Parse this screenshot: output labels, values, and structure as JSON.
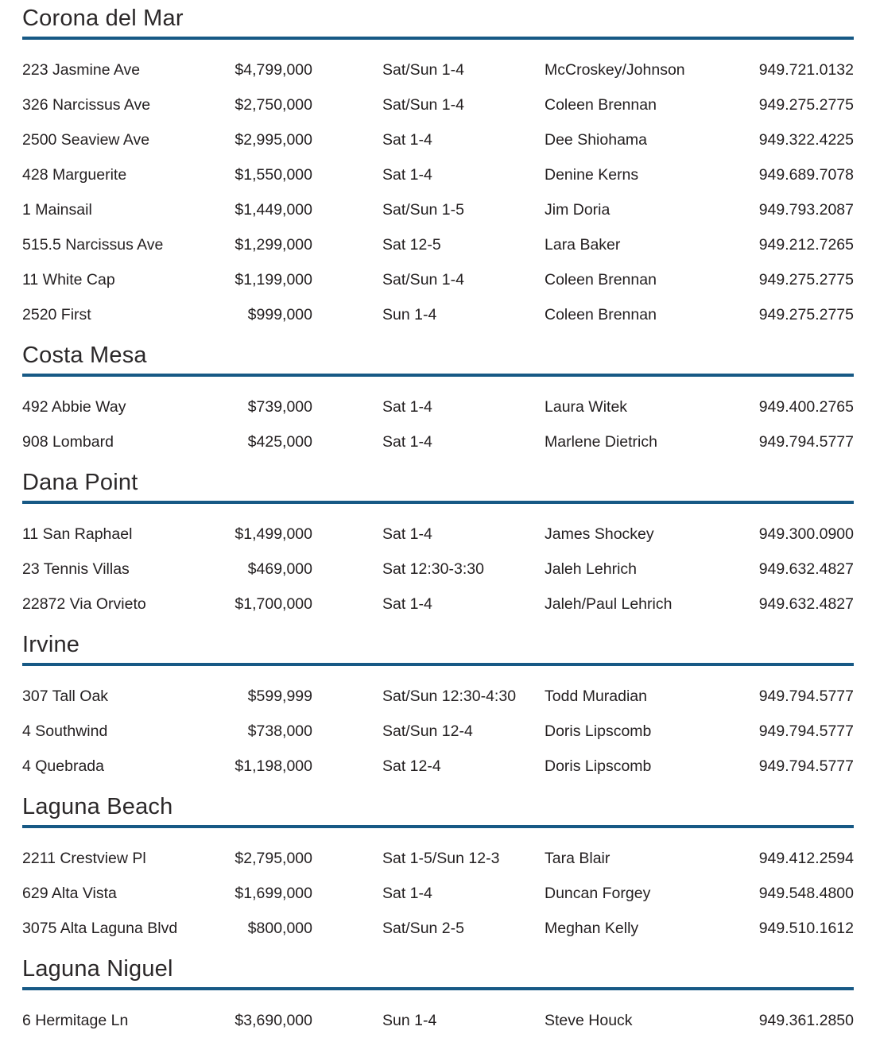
{
  "accent_color": "#175985",
  "text_color": "#231F20",
  "sections": [
    {
      "city": "Corona del Mar",
      "listings": [
        {
          "address": "223 Jasmine Ave",
          "price": "$4,799,000",
          "time": "Sat/Sun 1-4",
          "agent": "McCroskey/Johnson",
          "phone": "949.721.0132"
        },
        {
          "address": "326 Narcissus Ave",
          "price": "$2,750,000",
          "time": "Sat/Sun 1-4",
          "agent": "Coleen Brennan",
          "phone": "949.275.2775"
        },
        {
          "address": "2500 Seaview Ave",
          "price": "$2,995,000",
          "time": "Sat 1-4",
          "agent": "Dee Shiohama",
          "phone": "949.322.4225"
        },
        {
          "address": "428 Marguerite",
          "price": "$1,550,000",
          "time": "Sat 1-4",
          "agent": "Denine Kerns",
          "phone": "949.689.7078"
        },
        {
          "address": "1 Mainsail",
          "price": "$1,449,000",
          "time": "Sat/Sun 1-5",
          "agent": "Jim Doria",
          "phone": "949.793.2087"
        },
        {
          "address": "515.5 Narcissus Ave",
          "price": "$1,299,000",
          "time": "Sat 12-5",
          "agent": "Lara Baker",
          "phone": "949.212.7265"
        },
        {
          "address": "11 White Cap",
          "price": "$1,199,000",
          "time": "Sat/Sun 1-4",
          "agent": "Coleen Brennan",
          "phone": "949.275.2775"
        },
        {
          "address": "2520 First",
          "price": "$999,000",
          "time": "Sun 1-4",
          "agent": "Coleen Brennan",
          "phone": "949.275.2775"
        }
      ]
    },
    {
      "city": "Costa Mesa",
      "listings": [
        {
          "address": "492 Abbie Way",
          "price": "$739,000",
          "time": "Sat 1-4",
          "agent": "Laura Witek",
          "phone": "949.400.2765"
        },
        {
          "address": "908 Lombard",
          "price": "$425,000",
          "time": "Sat 1-4",
          "agent": "Marlene Dietrich",
          "phone": "949.794.5777"
        }
      ]
    },
    {
      "city": "Dana Point",
      "listings": [
        {
          "address": "11 San Raphael",
          "price": "$1,499,000",
          "time": "Sat 1-4",
          "agent": "James Shockey",
          "phone": "949.300.0900"
        },
        {
          "address": "23 Tennis Villas",
          "price": "$469,000",
          "time": "Sat 12:30-3:30",
          "agent": "Jaleh Lehrich",
          "phone": "949.632.4827"
        },
        {
          "address": "22872 Via Orvieto",
          "price": "$1,700,000",
          "time": "Sat 1-4",
          "agent": "Jaleh/Paul Lehrich",
          "phone": "949.632.4827"
        }
      ]
    },
    {
      "city": "Irvine",
      "listings": [
        {
          "address": "307 Tall Oak",
          "price": "$599,999",
          "time": "Sat/Sun 12:30-4:30",
          "agent": "Todd Muradian",
          "phone": "949.794.5777"
        },
        {
          "address": "4 Southwind",
          "price": "$738,000",
          "time": "Sat/Sun 12-4",
          "agent": "Doris Lipscomb",
          "phone": "949.794.5777"
        },
        {
          "address": "4 Quebrada",
          "price": "$1,198,000",
          "time": "Sat 12-4",
          "agent": "Doris Lipscomb",
          "phone": "949.794.5777"
        }
      ]
    },
    {
      "city": "Laguna Beach",
      "listings": [
        {
          "address": "2211 Crestview Pl",
          "price": "$2,795,000",
          "time": "Sat 1-5/Sun 12-3",
          "agent": "Tara Blair",
          "phone": "949.412.2594"
        },
        {
          "address": "629 Alta Vista",
          "price": "$1,699,000",
          "time": "Sat 1-4",
          "agent": "Duncan Forgey",
          "phone": "949.548.4800"
        },
        {
          "address": "3075 Alta Laguna Blvd",
          "price": "$800,000",
          "time": "Sat/Sun 2-5",
          "agent": "Meghan Kelly",
          "phone": "949.510.1612"
        }
      ]
    },
    {
      "city": "Laguna Niguel",
      "listings": [
        {
          "address": "6 Hermitage Ln",
          "price": "$3,690,000",
          "time": "Sun 1-4",
          "agent": "Steve Houck",
          "phone": "949.361.2850"
        }
      ]
    }
  ]
}
